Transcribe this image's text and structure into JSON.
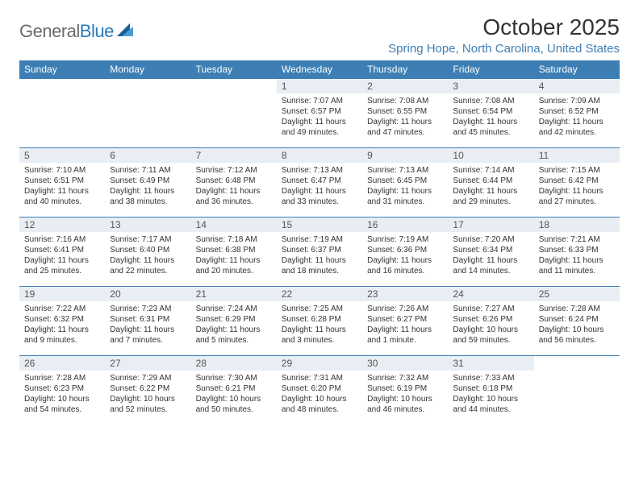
{
  "logo": {
    "text_general": "General",
    "text_blue": "Blue",
    "shape_color_dark": "#1b5f94",
    "shape_color_light": "#4a9cd4"
  },
  "header": {
    "title": "October 2025",
    "location": "Spring Hope, North Carolina, United States"
  },
  "colors": {
    "header_bg": "#3d7fb5",
    "header_text": "#ffffff",
    "daynum_bg": "#e8eef3",
    "cell_border": "#3d7fb5",
    "body_text": "#333333",
    "location_text": "#3d7fb5"
  },
  "typography": {
    "title_fontsize": 28,
    "location_fontsize": 15,
    "dayheader_fontsize": 12,
    "daynum_fontsize": 12,
    "details_fontsize": 10
  },
  "day_names": [
    "Sunday",
    "Monday",
    "Tuesday",
    "Wednesday",
    "Thursday",
    "Friday",
    "Saturday"
  ],
  "weeks": [
    [
      {
        "n": "",
        "sunrise": "",
        "sunset": "",
        "daylight": ""
      },
      {
        "n": "",
        "sunrise": "",
        "sunset": "",
        "daylight": ""
      },
      {
        "n": "",
        "sunrise": "",
        "sunset": "",
        "daylight": ""
      },
      {
        "n": "1",
        "sunrise": "Sunrise: 7:07 AM",
        "sunset": "Sunset: 6:57 PM",
        "daylight": "Daylight: 11 hours and 49 minutes."
      },
      {
        "n": "2",
        "sunrise": "Sunrise: 7:08 AM",
        "sunset": "Sunset: 6:55 PM",
        "daylight": "Daylight: 11 hours and 47 minutes."
      },
      {
        "n": "3",
        "sunrise": "Sunrise: 7:08 AM",
        "sunset": "Sunset: 6:54 PM",
        "daylight": "Daylight: 11 hours and 45 minutes."
      },
      {
        "n": "4",
        "sunrise": "Sunrise: 7:09 AM",
        "sunset": "Sunset: 6:52 PM",
        "daylight": "Daylight: 11 hours and 42 minutes."
      }
    ],
    [
      {
        "n": "5",
        "sunrise": "Sunrise: 7:10 AM",
        "sunset": "Sunset: 6:51 PM",
        "daylight": "Daylight: 11 hours and 40 minutes."
      },
      {
        "n": "6",
        "sunrise": "Sunrise: 7:11 AM",
        "sunset": "Sunset: 6:49 PM",
        "daylight": "Daylight: 11 hours and 38 minutes."
      },
      {
        "n": "7",
        "sunrise": "Sunrise: 7:12 AM",
        "sunset": "Sunset: 6:48 PM",
        "daylight": "Daylight: 11 hours and 36 minutes."
      },
      {
        "n": "8",
        "sunrise": "Sunrise: 7:13 AM",
        "sunset": "Sunset: 6:47 PM",
        "daylight": "Daylight: 11 hours and 33 minutes."
      },
      {
        "n": "9",
        "sunrise": "Sunrise: 7:13 AM",
        "sunset": "Sunset: 6:45 PM",
        "daylight": "Daylight: 11 hours and 31 minutes."
      },
      {
        "n": "10",
        "sunrise": "Sunrise: 7:14 AM",
        "sunset": "Sunset: 6:44 PM",
        "daylight": "Daylight: 11 hours and 29 minutes."
      },
      {
        "n": "11",
        "sunrise": "Sunrise: 7:15 AM",
        "sunset": "Sunset: 6:42 PM",
        "daylight": "Daylight: 11 hours and 27 minutes."
      }
    ],
    [
      {
        "n": "12",
        "sunrise": "Sunrise: 7:16 AM",
        "sunset": "Sunset: 6:41 PM",
        "daylight": "Daylight: 11 hours and 25 minutes."
      },
      {
        "n": "13",
        "sunrise": "Sunrise: 7:17 AM",
        "sunset": "Sunset: 6:40 PM",
        "daylight": "Daylight: 11 hours and 22 minutes."
      },
      {
        "n": "14",
        "sunrise": "Sunrise: 7:18 AM",
        "sunset": "Sunset: 6:38 PM",
        "daylight": "Daylight: 11 hours and 20 minutes."
      },
      {
        "n": "15",
        "sunrise": "Sunrise: 7:19 AM",
        "sunset": "Sunset: 6:37 PM",
        "daylight": "Daylight: 11 hours and 18 minutes."
      },
      {
        "n": "16",
        "sunrise": "Sunrise: 7:19 AM",
        "sunset": "Sunset: 6:36 PM",
        "daylight": "Daylight: 11 hours and 16 minutes."
      },
      {
        "n": "17",
        "sunrise": "Sunrise: 7:20 AM",
        "sunset": "Sunset: 6:34 PM",
        "daylight": "Daylight: 11 hours and 14 minutes."
      },
      {
        "n": "18",
        "sunrise": "Sunrise: 7:21 AM",
        "sunset": "Sunset: 6:33 PM",
        "daylight": "Daylight: 11 hours and 11 minutes."
      }
    ],
    [
      {
        "n": "19",
        "sunrise": "Sunrise: 7:22 AM",
        "sunset": "Sunset: 6:32 PM",
        "daylight": "Daylight: 11 hours and 9 minutes."
      },
      {
        "n": "20",
        "sunrise": "Sunrise: 7:23 AM",
        "sunset": "Sunset: 6:31 PM",
        "daylight": "Daylight: 11 hours and 7 minutes."
      },
      {
        "n": "21",
        "sunrise": "Sunrise: 7:24 AM",
        "sunset": "Sunset: 6:29 PM",
        "daylight": "Daylight: 11 hours and 5 minutes."
      },
      {
        "n": "22",
        "sunrise": "Sunrise: 7:25 AM",
        "sunset": "Sunset: 6:28 PM",
        "daylight": "Daylight: 11 hours and 3 minutes."
      },
      {
        "n": "23",
        "sunrise": "Sunrise: 7:26 AM",
        "sunset": "Sunset: 6:27 PM",
        "daylight": "Daylight: 11 hours and 1 minute."
      },
      {
        "n": "24",
        "sunrise": "Sunrise: 7:27 AM",
        "sunset": "Sunset: 6:26 PM",
        "daylight": "Daylight: 10 hours and 59 minutes."
      },
      {
        "n": "25",
        "sunrise": "Sunrise: 7:28 AM",
        "sunset": "Sunset: 6:24 PM",
        "daylight": "Daylight: 10 hours and 56 minutes."
      }
    ],
    [
      {
        "n": "26",
        "sunrise": "Sunrise: 7:28 AM",
        "sunset": "Sunset: 6:23 PM",
        "daylight": "Daylight: 10 hours and 54 minutes."
      },
      {
        "n": "27",
        "sunrise": "Sunrise: 7:29 AM",
        "sunset": "Sunset: 6:22 PM",
        "daylight": "Daylight: 10 hours and 52 minutes."
      },
      {
        "n": "28",
        "sunrise": "Sunrise: 7:30 AM",
        "sunset": "Sunset: 6:21 PM",
        "daylight": "Daylight: 10 hours and 50 minutes."
      },
      {
        "n": "29",
        "sunrise": "Sunrise: 7:31 AM",
        "sunset": "Sunset: 6:20 PM",
        "daylight": "Daylight: 10 hours and 48 minutes."
      },
      {
        "n": "30",
        "sunrise": "Sunrise: 7:32 AM",
        "sunset": "Sunset: 6:19 PM",
        "daylight": "Daylight: 10 hours and 46 minutes."
      },
      {
        "n": "31",
        "sunrise": "Sunrise: 7:33 AM",
        "sunset": "Sunset: 6:18 PM",
        "daylight": "Daylight: 10 hours and 44 minutes."
      },
      {
        "n": "",
        "sunrise": "",
        "sunset": "",
        "daylight": ""
      }
    ]
  ]
}
